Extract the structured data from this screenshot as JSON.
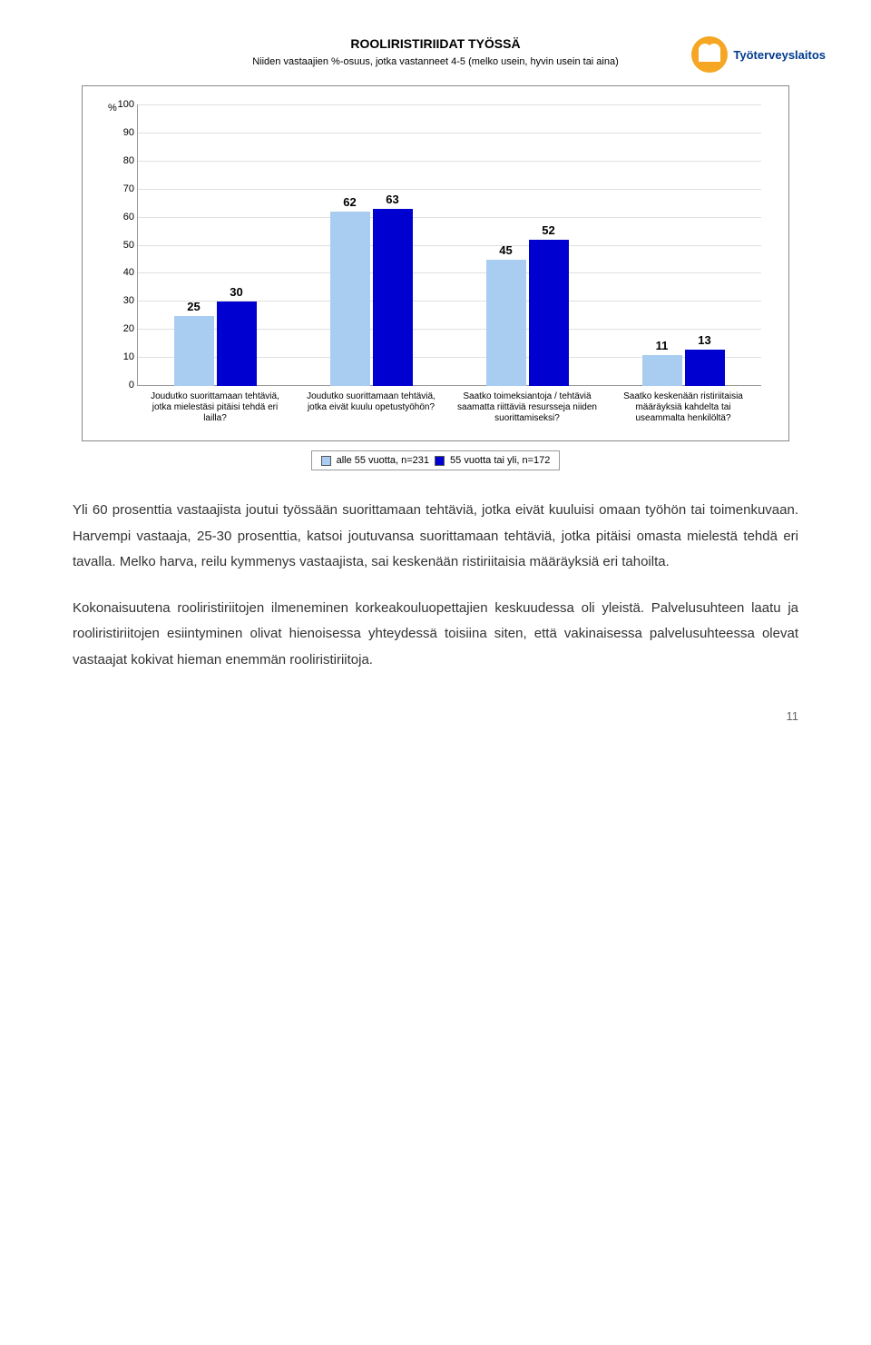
{
  "header": {
    "title": "ROOLIRISTIRIIDAT TYÖSSÄ",
    "subtitle": "Niiden vastaajien %-osuus, jotka vastanneet 4-5 (melko usein, hyvin usein tai aina)",
    "logo_text": "Työterveyslaitos"
  },
  "chart": {
    "type": "bar",
    "y_title": "%",
    "ylim": [
      0,
      100
    ],
    "ytick_step": 10,
    "categories": [
      "Joudutko suorittamaan tehtäviä, jotka mielestäsi pitäisi tehdä eri lailla?",
      "Joudutko suorittamaan tehtäviä, jotka eivät kuulu opetustyöhön?",
      "Saatko toimeksiantoja / tehtäviä saamatta riittäviä resursseja niiden suorittamiseksi?",
      "Saatko keskenään ristiriitaisia määräyksiä kahdelta tai useammalta henkilöltä?"
    ],
    "series": [
      {
        "label": "alle 55 vuotta, n=231",
        "color": "#a9cdf0",
        "values": [
          25,
          62,
          45,
          11
        ]
      },
      {
        "label": "55 vuotta tai yli, n=172",
        "color": "#0000d0",
        "values": [
          30,
          63,
          52,
          13
        ]
      }
    ],
    "grid_color": "#e0e0e0",
    "background": "#ffffff"
  },
  "body": {
    "p1": "Yli 60 prosenttia vastaajista joutui työssään suorittamaan tehtäviä, jotka eivät kuuluisi omaan työhön tai toimenkuvaan. Harvempi vastaaja, 25-30 prosenttia, katsoi joutuvansa suorittamaan tehtäviä, jotka pitäisi omasta mielestä tehdä eri tavalla. Melko harva, reilu kymmenys vastaajista, sai keskenään ristiriitaisia määräyksiä eri tahoilta.",
    "p2": "Kokonaisuutena rooliristiriitojen ilmeneminen korkeakouluopettajien keskuudessa oli yleistä. Palvelusuhteen laatu ja rooliristiriitojen esiintyminen olivat hienoisessa yhteydessä toisiina siten, että vakinaisessa palvelusuhteessa olevat vastaajat kokivat hieman enemmän rooliristiriitoja."
  },
  "page_number": "11"
}
